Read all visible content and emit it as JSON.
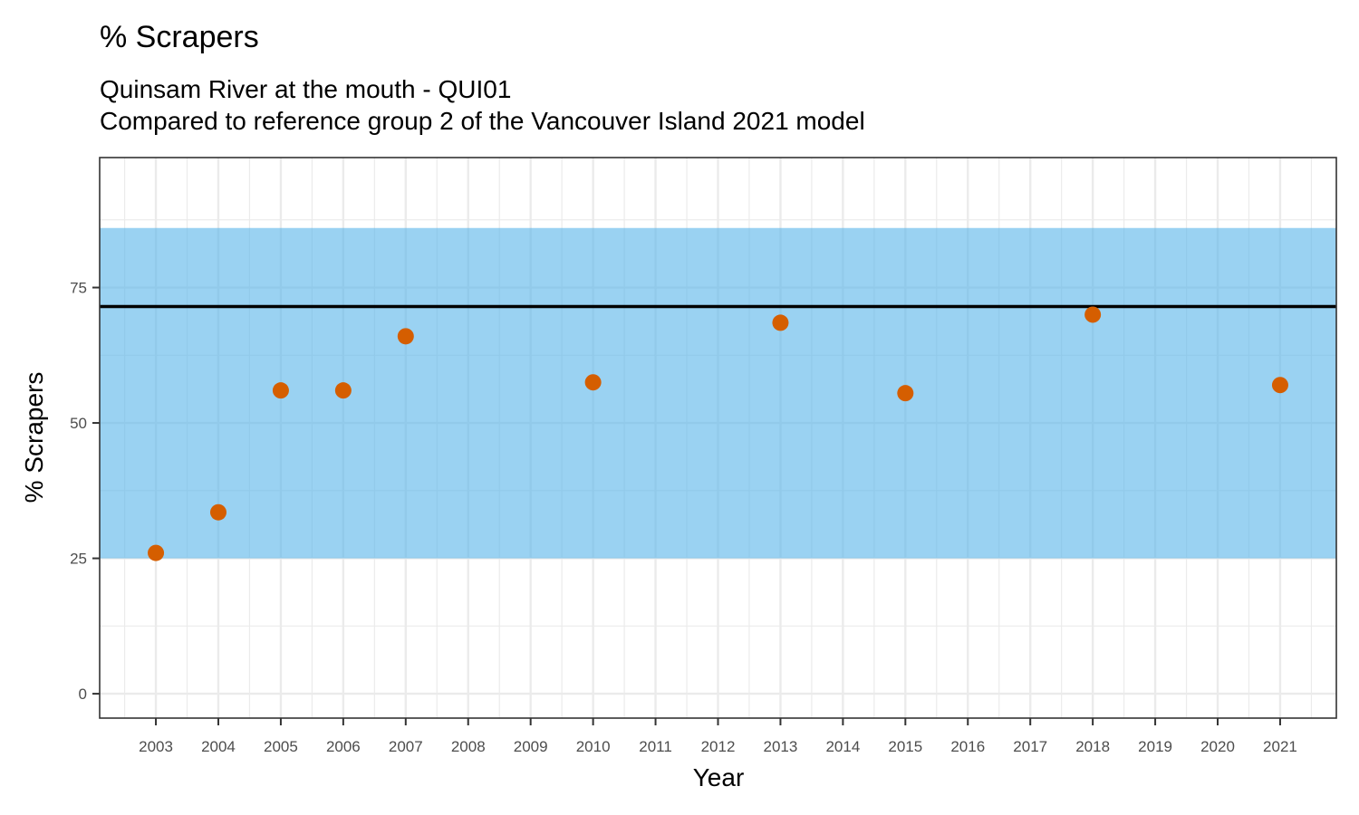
{
  "chart_data": {
    "type": "scatter",
    "title": "% Scrapers",
    "subtitle_lines": [
      "Quinsam River at the mouth - QUI01",
      "Compared to reference group 2 of the Vancouver Island 2021 model"
    ],
    "xlabel": "Year",
    "ylabel": "% Scrapers",
    "x_ticks": [
      2003,
      2004,
      2005,
      2006,
      2007,
      2008,
      2009,
      2010,
      2011,
      2012,
      2013,
      2014,
      2015,
      2016,
      2017,
      2018,
      2019,
      2020,
      2021
    ],
    "y_ticks": [
      0,
      25,
      50,
      75
    ],
    "xlim": [
      2002.1,
      2021.9
    ],
    "ylim": [
      -4.5,
      99
    ],
    "grid": true,
    "reference_band": {
      "ymin": 25,
      "ymax": 86,
      "color": "#56b4e9"
    },
    "reference_line": {
      "y": 71.5,
      "color": "#000000"
    },
    "point_color": "#d55e00",
    "points": [
      {
        "x": 2003,
        "y": 26
      },
      {
        "x": 2004,
        "y": 33.5
      },
      {
        "x": 2005,
        "y": 56
      },
      {
        "x": 2006,
        "y": 56
      },
      {
        "x": 2007,
        "y": 66
      },
      {
        "x": 2010,
        "y": 57.5
      },
      {
        "x": 2013,
        "y": 68.5
      },
      {
        "x": 2015,
        "y": 55.5
      },
      {
        "x": 2018,
        "y": 70
      },
      {
        "x": 2021,
        "y": 57
      }
    ]
  }
}
